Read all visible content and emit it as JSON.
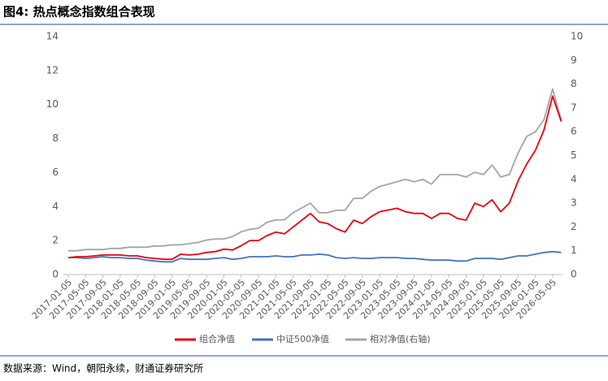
{
  "chart_data": {
    "type": "line",
    "title": "图4: 热点概念指数组合表现",
    "source": "数据来源：Wind，朝阳永续，财通证券研究所",
    "categories": [
      "2017-01-05",
      null,
      "2017-05-05",
      null,
      "2017-09-05",
      null,
      "2018-01-05",
      null,
      "2018-05-05",
      null,
      "2018-09-05",
      null,
      "2019-01-05",
      null,
      "2019-05-05",
      null,
      "2019-09-05",
      null,
      "2020-01-05",
      null,
      "2020-05-05",
      null,
      "2020-09-05",
      null,
      "2021-01-05",
      null,
      "2021-05-05",
      null,
      "2021-09-05",
      null,
      "2022-01-05",
      null,
      "2022-05-05",
      null,
      "2022-09-05",
      null,
      "2023-01-05",
      null,
      "2023-05-05",
      null,
      "2023-09-05",
      null,
      "2024-01-05",
      null,
      "2024-05-05",
      null,
      "2024-09-05",
      null,
      "2025-01-05",
      null,
      "2025-05-05",
      null,
      "2025-09-05",
      null,
      "2026-01-05",
      null,
      "2026-05-05",
      null
    ],
    "series": [
      {
        "name": "组合净值",
        "color": "#e8000b",
        "values": [
          1.0,
          1.05,
          1.05,
          1.1,
          1.15,
          1.15,
          1.15,
          1.1,
          1.1,
          1.0,
          0.95,
          0.9,
          0.9,
          1.2,
          1.15,
          1.2,
          1.3,
          1.35,
          1.5,
          1.45,
          1.7,
          2.0,
          2.0,
          2.3,
          2.5,
          2.4,
          2.8,
          3.2,
          3.6,
          3.1,
          3.0,
          2.7,
          2.5,
          3.2,
          3.0,
          3.4,
          3.7,
          3.8,
          3.9,
          3.7,
          3.6,
          3.6,
          3.3,
          3.6,
          3.6,
          3.3,
          3.2,
          4.2,
          4.0,
          4.4,
          3.7,
          4.2,
          5.5,
          6.5,
          7.3,
          8.5,
          10.5,
          9.0
        ]
      },
      {
        "name": "中证500净值",
        "color": "#4472c4",
        "values": [
          1.0,
          1.0,
          0.95,
          1.0,
          1.05,
          1.0,
          1.0,
          0.95,
          0.95,
          0.85,
          0.8,
          0.75,
          0.75,
          0.95,
          0.9,
          0.9,
          0.9,
          0.95,
          1.0,
          0.9,
          0.95,
          1.05,
          1.05,
          1.05,
          1.1,
          1.05,
          1.05,
          1.15,
          1.15,
          1.2,
          1.15,
          1.0,
          0.95,
          1.0,
          0.95,
          0.95,
          1.0,
          1.0,
          1.0,
          0.95,
          0.95,
          0.9,
          0.85,
          0.85,
          0.85,
          0.8,
          0.8,
          0.95,
          0.95,
          0.95,
          0.9,
          1.0,
          1.1,
          1.1,
          1.2,
          1.3,
          1.35,
          1.3
        ]
      },
      {
        "name": "相对净值(右轴)",
        "color": "#a5a5a5",
        "axis": "y2",
        "values": [
          1.0,
          1.0,
          1.05,
          1.05,
          1.05,
          1.1,
          1.1,
          1.15,
          1.15,
          1.15,
          1.2,
          1.2,
          1.25,
          1.25,
          1.3,
          1.35,
          1.45,
          1.5,
          1.5,
          1.6,
          1.8,
          1.9,
          1.95,
          2.2,
          2.3,
          2.3,
          2.6,
          2.8,
          3.0,
          2.6,
          2.6,
          2.7,
          2.7,
          3.2,
          3.2,
          3.5,
          3.7,
          3.8,
          3.9,
          4.0,
          3.9,
          4.0,
          3.8,
          4.2,
          4.2,
          4.2,
          4.1,
          4.3,
          4.2,
          4.6,
          4.1,
          4.2,
          5.1,
          5.8,
          6.0,
          6.5,
          7.8,
          6.5
        ]
      }
    ],
    "ylim": [
      0,
      14
    ],
    "yticks": [
      0,
      2,
      4,
      6,
      8,
      10,
      12,
      14
    ],
    "y2lim": [
      0,
      10
    ],
    "y2ticks": [
      0,
      1,
      2,
      3,
      4,
      5,
      6,
      7,
      8,
      9,
      10
    ],
    "grid": false,
    "legend": "bottom"
  }
}
